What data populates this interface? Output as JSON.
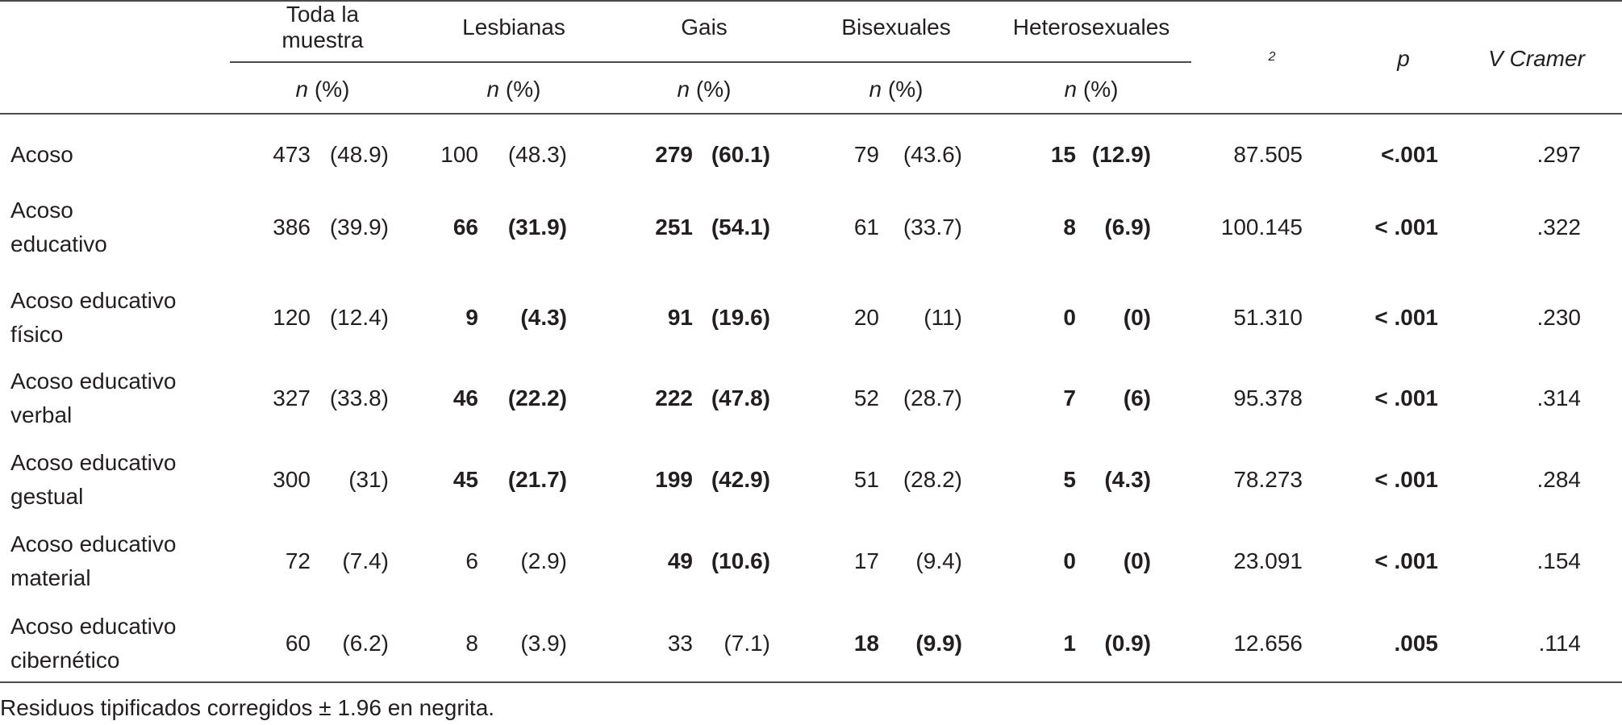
{
  "table": {
    "group_headers": [
      "Toda la muestra",
      "Lesbianas",
      "Gais",
      "Bisexuales",
      "Heterosexuales"
    ],
    "sub_header_n": "n",
    "sub_header_pct": "(%)",
    "stat_headers": {
      "chi2": "2",
      "p": "p",
      "v": "V Cramer"
    },
    "rows": [
      {
        "label": [
          "Acoso"
        ],
        "cells": [
          {
            "n": "473",
            "pct": "(48.9)",
            "bold": false
          },
          {
            "n": "100",
            "pct": "(48.3)",
            "bold": false
          },
          {
            "n": "279",
            "pct": "(60.1)",
            "bold": true
          },
          {
            "n": "79",
            "pct": "(43.6)",
            "bold": false
          },
          {
            "n": "15",
            "pct": "(12.9)",
            "bold": true
          }
        ],
        "chi2": "87.505",
        "p": "<.001",
        "p_bold": true,
        "v": ".297"
      },
      {
        "label": [
          "Acoso",
          "educativo"
        ],
        "cells": [
          {
            "n": "386",
            "pct": "(39.9)",
            "bold": false
          },
          {
            "n": "66",
            "pct": "(31.9)",
            "bold": true
          },
          {
            "n": "251",
            "pct": "(54.1)",
            "bold": true
          },
          {
            "n": "61",
            "pct": "(33.7)",
            "bold": false
          },
          {
            "n": "8",
            "pct": "(6.9)",
            "bold": true
          }
        ],
        "chi2": "100.145",
        "p": "< .001",
        "p_bold": true,
        "v": ".322"
      },
      {
        "label": [
          "Acoso educativo",
          "físico"
        ],
        "cells": [
          {
            "n": "120",
            "pct": "(12.4)",
            "bold": false
          },
          {
            "n": "9",
            "pct": "(4.3)",
            "bold": true
          },
          {
            "n": "91",
            "pct": "(19.6)",
            "bold": true
          },
          {
            "n": "20",
            "pct": "(11)",
            "bold": false
          },
          {
            "n": "0",
            "pct": "(0)",
            "bold": true
          }
        ],
        "chi2": "51.310",
        "p": "< .001",
        "p_bold": true,
        "v": ".230"
      },
      {
        "label": [
          "Acoso educativo",
          "verbal"
        ],
        "cells": [
          {
            "n": "327",
            "pct": "(33.8)",
            "bold": false
          },
          {
            "n": "46",
            "pct": "(22.2)",
            "bold": true
          },
          {
            "n": "222",
            "pct": "(47.8)",
            "bold": true
          },
          {
            "n": "52",
            "pct": "(28.7)",
            "bold": false
          },
          {
            "n": "7",
            "pct": "(6)",
            "bold": true
          }
        ],
        "chi2": "95.378",
        "p": "< .001",
        "p_bold": true,
        "v": ".314"
      },
      {
        "label": [
          "Acoso educativo",
          "gestual"
        ],
        "cells": [
          {
            "n": "300",
            "pct": "(31)",
            "bold": false
          },
          {
            "n": "45",
            "pct": "(21.7)",
            "bold": true
          },
          {
            "n": "199",
            "pct": "(42.9)",
            "bold": true
          },
          {
            "n": "51",
            "pct": "(28.2)",
            "bold": false
          },
          {
            "n": "5",
            "pct": "(4.3)",
            "bold": true
          }
        ],
        "chi2": "78.273",
        "p": "< .001",
        "p_bold": true,
        "v": ".284"
      },
      {
        "label": [
          "Acoso educativo",
          "material"
        ],
        "cells": [
          {
            "n": "72",
            "pct": "(7.4)",
            "bold": false
          },
          {
            "n": "6",
            "pct": "(2.9)",
            "bold": false
          },
          {
            "n": "49",
            "pct": "(10.6)",
            "bold": true
          },
          {
            "n": "17",
            "pct": "(9.4)",
            "bold": false
          },
          {
            "n": "0",
            "pct": "(0)",
            "bold": true
          }
        ],
        "chi2": "23.091",
        "p": "< .001",
        "p_bold": true,
        "v": ".154"
      },
      {
        "label": [
          "Acoso educativo",
          "cibernético"
        ],
        "cells": [
          {
            "n": "60",
            "pct": "(6.2)",
            "bold": false
          },
          {
            "n": "8",
            "pct": "(3.9)",
            "bold": false
          },
          {
            "n": "33",
            "pct": "(7.1)",
            "bold": false
          },
          {
            "n": "18",
            "pct": "(9.9)",
            "bold": true
          },
          {
            "n": "1",
            "pct": "(0.9)",
            "bold": true
          }
        ],
        "chi2": "12.656",
        "p": ".005",
        "p_bold": true,
        "v": ".114"
      }
    ],
    "footnote": "Residuos tipificados corregidos ± 1.96 en negrita."
  }
}
